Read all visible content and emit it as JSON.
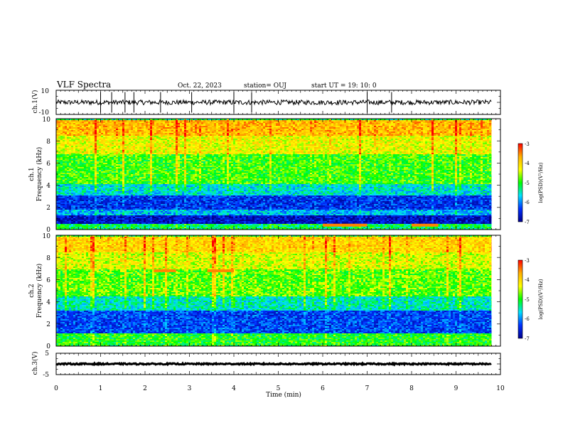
{
  "header": {
    "title": "VLF Spectra",
    "date": "Oct. 22, 2023",
    "station": "station= OUJ",
    "start_ut": "start  UT =   19: 10: 0"
  },
  "panels": {
    "ch1_wave": {
      "ylabel": "ch.1(V)",
      "yticks": [
        "10",
        "-10"
      ]
    },
    "ch1_spec": {
      "ylabel_line1": "ch.1",
      "ylabel_line2": "Frequency (kHz)",
      "yticks": [
        "10",
        "8",
        "6",
        "4",
        "2",
        "0"
      ]
    },
    "ch2_spec": {
      "ylabel_line1": "ch.2",
      "ylabel_line2": "Frequency (kHz)",
      "yticks": [
        "10",
        "8",
        "6",
        "4",
        "2",
        "0"
      ]
    },
    "ch3_wave": {
      "ylabel": "ch.3(V)",
      "yticks": [
        "5",
        "-5"
      ]
    }
  },
  "xaxis": {
    "label": "Time (min)",
    "ticks": [
      "0",
      "1",
      "2",
      "3",
      "4",
      "5",
      "6",
      "7",
      "8",
      "9",
      "10"
    ]
  },
  "colorbar": {
    "label": "log(PSD)(V²/Hz)",
    "ticks": [
      "-3",
      "-4",
      "-5",
      "-6",
      "-7"
    ],
    "colors": [
      "#ff0000",
      "#ffb000",
      "#ffff00",
      "#00ff00",
      "#00e0ff",
      "#0030ff",
      "#00008b"
    ]
  },
  "chart_data": [
    {
      "type": "line",
      "name_printed": "ch.1(V)",
      "x_unit": "min",
      "xlim": [
        0,
        10
      ],
      "ylim": [
        -10,
        10
      ],
      "data_end_x": 9.8,
      "mean_level": 0,
      "noise_amplitude": 2,
      "spikes_x": [
        1.0,
        1.25,
        1.55,
        1.75,
        2.35,
        3.05,
        4.0,
        4.4,
        7.0,
        7.55
      ]
    },
    {
      "type": "heatmap",
      "name_printed": "ch.1",
      "x_unit": "min",
      "y_unit": "kHz",
      "xlim": [
        0,
        10
      ],
      "ylim": [
        0,
        10
      ],
      "zlim": [
        -7,
        -3
      ],
      "data_end_x": 9.8,
      "bands_kHz": [
        {
          "from": 0.0,
          "to": 0.6,
          "level": -5.2
        },
        {
          "from": 0.6,
          "to": 1.4,
          "level": -6.7
        },
        {
          "from": 1.4,
          "to": 1.8,
          "level": -5.8
        },
        {
          "from": 1.8,
          "to": 3.2,
          "level": -6.4
        },
        {
          "from": 3.2,
          "to": 4.2,
          "level": -5.6
        },
        {
          "from": 4.2,
          "to": 6.8,
          "level": -4.9
        },
        {
          "from": 6.8,
          "to": 8.5,
          "level": -4.3
        },
        {
          "from": 8.5,
          "to": 10.0,
          "level": -3.8
        }
      ],
      "features": [
        {
          "x_from": 6.0,
          "x_to": 7.0,
          "y": 0.4,
          "level": -3.5
        },
        {
          "x_from": 8.0,
          "x_to": 8.6,
          "y": 0.4,
          "level": -3.5
        }
      ]
    },
    {
      "type": "heatmap",
      "name_printed": "ch.2",
      "x_unit": "min",
      "y_unit": "kHz",
      "xlim": [
        0,
        10
      ],
      "ylim": [
        0,
        10
      ],
      "zlim": [
        -7,
        -3
      ],
      "data_end_x": 9.8,
      "bands_kHz": [
        {
          "from": 0.0,
          "to": 1.2,
          "level": -5.0
        },
        {
          "from": 1.2,
          "to": 3.3,
          "level": -6.3
        },
        {
          "from": 3.3,
          "to": 4.5,
          "level": -5.5
        },
        {
          "from": 4.5,
          "to": 7.0,
          "level": -4.8
        },
        {
          "from": 7.0,
          "to": 8.5,
          "level": -4.4
        },
        {
          "from": 8.5,
          "to": 10.0,
          "level": -4.0
        }
      ],
      "features": [
        {
          "x_from": 2.2,
          "x_to": 2.7,
          "y": 6.8,
          "level": -3.5
        },
        {
          "x_from": 3.4,
          "x_to": 4.0,
          "y": 6.8,
          "level": -3.5
        }
      ]
    },
    {
      "type": "line",
      "name_printed": "ch.3(V)",
      "x_unit": "min",
      "xlim": [
        0,
        10
      ],
      "ylim": [
        -5,
        5
      ],
      "data_end_x": 9.8,
      "mean_level": 0,
      "noise_amplitude": 0.3,
      "spikes_x": []
    }
  ]
}
